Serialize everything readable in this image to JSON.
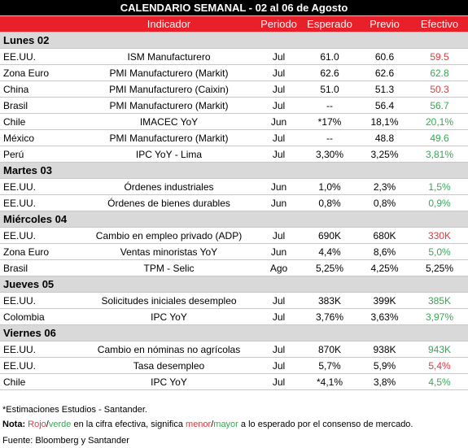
{
  "title": "CALENDARIO SEMANAL - 02 al 06 de Agosto",
  "headers": [
    "Indicador",
    "Periodo",
    "Esperado",
    "Previo",
    "Efectivo"
  ],
  "sections": [
    {
      "day": "Lunes 02",
      "rows": [
        {
          "country": "EE.UU.",
          "indicator": "ISM Manufacturero",
          "period": "Jul",
          "expected": "61.0",
          "previous": "60.6",
          "actual": "59.5",
          "actual_color": "#e0393e"
        },
        {
          "country": "Zona Euro",
          "indicator": "PMI Manufacturero (Markit)",
          "period": "Jul",
          "expected": "62.6",
          "previous": "62.6",
          "actual": "62.8",
          "actual_color": "#3aa655"
        },
        {
          "country": "China",
          "indicator": "PMI Manufacturero (Caixin)",
          "period": "Jul",
          "expected": "51.0",
          "previous": "51.3",
          "actual": "50.3",
          "actual_color": "#e0393e"
        },
        {
          "country": "Brasil",
          "indicator": "PMI Manufacturero (Markit)",
          "period": "Jul",
          "expected": "--",
          "previous": "56.4",
          "actual": "56.7",
          "actual_color": "#3aa655"
        },
        {
          "country": "Chile",
          "indicator": "IMACEC YoY",
          "period": "Jun",
          "expected": "*17%",
          "previous": "18,1%",
          "actual": "20,1%",
          "actual_color": "#3aa655"
        },
        {
          "country": "México",
          "indicator": "PMI Manufacturero (Markit)",
          "period": "Jul",
          "expected": "--",
          "previous": "48.8",
          "actual": "49.6",
          "actual_color": "#3aa655"
        },
        {
          "country": "Perú",
          "indicator": "IPC YoY - Lima",
          "period": "Jul",
          "expected": "3,30%",
          "previous": "3,25%",
          "actual": "3,81%",
          "actual_color": "#3aa655"
        }
      ]
    },
    {
      "day": "Martes 03",
      "rows": [
        {
          "country": "EE.UU.",
          "indicator": "Órdenes industriales",
          "period": "Jun",
          "expected": "1,0%",
          "previous": "2,3%",
          "actual": "1,5%",
          "actual_color": "#3aa655"
        },
        {
          "country": "EE.UU.",
          "indicator": "Órdenes de bienes durables",
          "period": "Jun",
          "expected": "0,8%",
          "previous": "0,8%",
          "actual": "0,9%",
          "actual_color": "#3aa655"
        }
      ]
    },
    {
      "day": "Miércoles 04",
      "rows": [
        {
          "country": "EE.UU.",
          "indicator": "Cambio en empleo privado (ADP)",
          "period": "Jul",
          "expected": "690K",
          "previous": "680K",
          "actual": "330K",
          "actual_color": "#e0393e"
        },
        {
          "country": "Zona Euro",
          "indicator": "Ventas minoristas YoY",
          "period": "Jun",
          "expected": "4,4%",
          "previous": "8,6%",
          "actual": "5,0%",
          "actual_color": "#3aa655"
        },
        {
          "country": "Brasil",
          "indicator": "TPM - Selic",
          "period": "Ago",
          "expected": "5,25%",
          "previous": "4,25%",
          "actual": "5,25%",
          "actual_color": "#000000"
        }
      ]
    },
    {
      "day": "Jueves 05",
      "rows": [
        {
          "country": "EE.UU.",
          "indicator": "Solicitudes iniciales desempleo",
          "period": "Jul",
          "expected": "383K",
          "previous": "399K",
          "actual": "385K",
          "actual_color": "#3aa655"
        },
        {
          "country": "Colombia",
          "indicator": "IPC YoY",
          "period": "Jul",
          "expected": "3,76%",
          "previous": "3,63%",
          "actual": "3,97%",
          "actual_color": "#3aa655"
        }
      ]
    },
    {
      "day": "Viernes 06",
      "rows": [
        {
          "country": "EE.UU.",
          "indicator": "Cambio en nóminas no agrícolas",
          "period": "Jul",
          "expected": "870K",
          "previous": "938K",
          "actual": "943K",
          "actual_color": "#3aa655"
        },
        {
          "country": "EE.UU.",
          "indicator": "Tasa desempleo",
          "period": "Jul",
          "expected": "5,7%",
          "previous": "5,9%",
          "actual": "5,4%",
          "actual_color": "#e0393e"
        },
        {
          "country": "Chile",
          "indicator": "IPC YoY",
          "period": "Jul",
          "expected": "*4,1%",
          "previous": "3,8%",
          "actual": "4,5%",
          "actual_color": "#3aa655"
        }
      ]
    }
  ],
  "footnote": "*Estimaciones Estudios - Santander.",
  "note": {
    "label": "Nota:",
    "parts": [
      {
        "text": "Rojo",
        "color": "#e0393e"
      },
      {
        "text": "/",
        "color": "#000000"
      },
      {
        "text": "verde",
        "color": "#3aa655"
      },
      {
        "text": "en la cifra efectiva, significa",
        "color": "#000000"
      },
      {
        "text": "menor",
        "color": "#e0393e"
      },
      {
        "text": "/",
        "color": "#000000"
      },
      {
        "text": "mayor",
        "color": "#3aa655"
      },
      {
        "text": "a lo esperado por el consenso de mercado.",
        "color": "#000000"
      }
    ]
  },
  "source": "Fuente: Bloomberg y Santander"
}
